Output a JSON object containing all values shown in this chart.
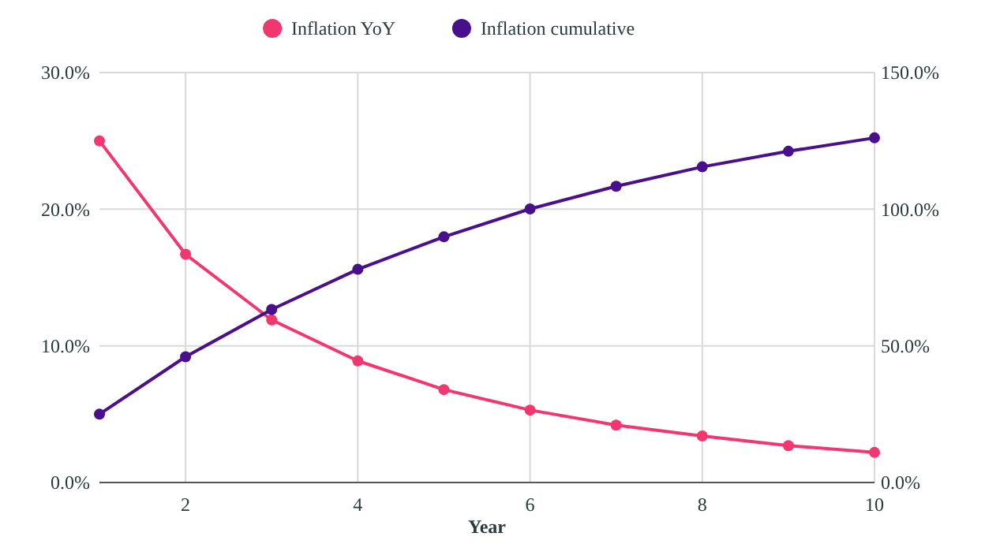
{
  "chart_data": {
    "type": "line",
    "xlabel": "Year",
    "x": [
      1,
      2,
      3,
      4,
      5,
      6,
      7,
      8,
      9,
      10
    ],
    "series": [
      {
        "name": "Inflation YoY",
        "color": "#f2366f",
        "values": [
          25,
          16.7,
          11.9,
          8.9,
          6.8,
          5.3,
          4.2,
          3.4,
          2.7,
          2.2
        ]
      },
      {
        "name": "Inflation cumulative",
        "color": "#4a0f8c",
        "axis": "y2",
        "values": [
          25,
          46,
          63.3,
          78,
          89.9,
          100.1,
          108.4,
          115.5,
          121.2,
          126.1
        ]
      }
    ],
    "xlim": [
      1,
      10
    ],
    "xticks": [
      2,
      4,
      6,
      8,
      10
    ],
    "ylim": [
      0,
      30
    ],
    "yticks": [
      {
        "value": 0,
        "label": "0.0%"
      },
      {
        "value": 10,
        "label": "10.0%"
      },
      {
        "value": 20,
        "label": "20.0%"
      },
      {
        "value": 30,
        "label": "30.0%"
      }
    ],
    "y2lim": [
      0,
      150
    ],
    "y2ticks": [
      {
        "value": 0,
        "label": "0.0%"
      },
      {
        "value": 50,
        "label": "50.0%"
      },
      {
        "value": 100,
        "label": "100.0%"
      },
      {
        "value": 150,
        "label": "150.0%"
      }
    ],
    "grid": true,
    "legend": "top",
    "marker": "circle",
    "line_style": "solid"
  }
}
